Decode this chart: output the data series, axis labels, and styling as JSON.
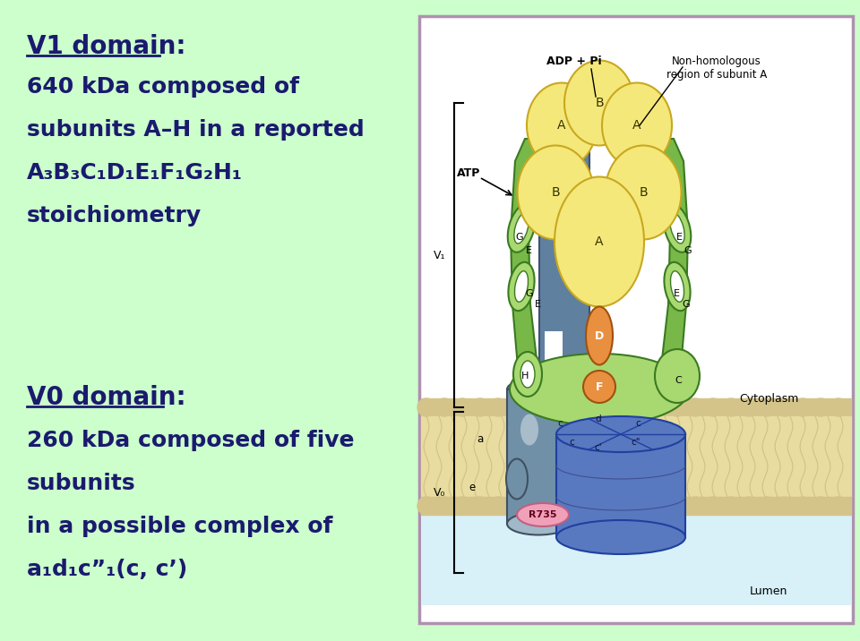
{
  "bg_color": "#ccffcc",
  "text_color": "#1a1a6e",
  "title1": "V1 domain:",
  "body1_lines": [
    "640 kDa composed of",
    "subunits A–H in a reported",
    "A₃B₃C₁D₁E₁F₁G₂H₁",
    "stoichiometry"
  ],
  "title2": "V0 domain:",
  "body2_lines": [
    "260 kDa composed of five",
    "subunits",
    "in a possible complex of",
    "a₁d₁c”₁(c, c’)"
  ],
  "diagram_box_border": "#b090b0",
  "diagram_bg": "#ffffff",
  "lumen_bg": "#d8f0f8",
  "mem_color": "#d4c48a",
  "mem_wave_color": "#c4b070",
  "yellow_fill": "#f5e87a",
  "yellow_edge": "#c8a820",
  "green_fill": "#78b848",
  "green_edge": "#3a7a20",
  "green_light": "#a8d870",
  "blue_fill": "#5878c0",
  "blue_edge": "#2040a0",
  "blue_dark": "#405090",
  "gray_fill": "#7090a8",
  "gray_edge": "#405060",
  "gray_light": "#a0b8c8",
  "orange_fill": "#e89040",
  "orange_edge": "#a05010",
  "pink_fill": "#f0a0b8",
  "pink_edge": "#c06080",
  "body_fontsize": 18,
  "title_fontsize": 20
}
